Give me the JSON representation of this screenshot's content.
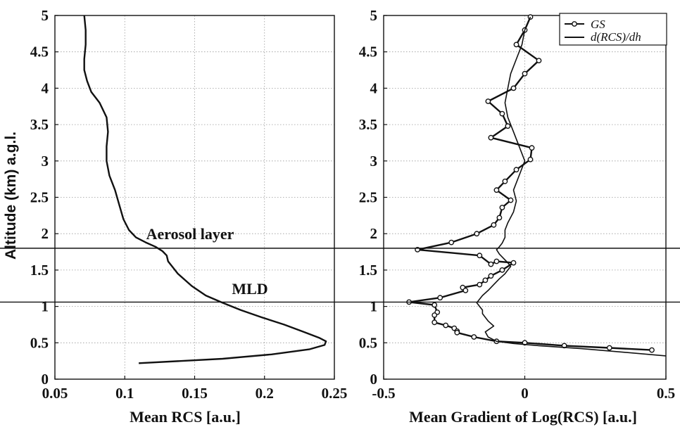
{
  "y_axis_label": "Altitude (km) a.g.l.",
  "annotations": {
    "aerosol_layer": "Aerosol layer",
    "mld": "MLD"
  },
  "horizontal_lines_km": [
    1.8,
    1.06
  ],
  "chart_data": [
    {
      "type": "line",
      "title": "",
      "xlabel": "Mean RCS [a.u.]",
      "ylabel": "Altitude (km) a.g.l.",
      "xlim": [
        0.05,
        0.25
      ],
      "ylim": [
        0,
        5
      ],
      "xticks": [
        "0.05",
        "0.1",
        "0.15",
        "0.2",
        "0.25"
      ],
      "yticks": [
        "0",
        "0.5",
        "1",
        "1.5",
        "2",
        "2.5",
        "3",
        "3.5",
        "4",
        "4.5",
        "5"
      ],
      "grid": true,
      "series": [
        {
          "color": "#111111",
          "x": [
            0.071,
            0.072,
            0.072,
            0.071,
            0.071,
            0.073,
            0.076,
            0.082,
            0.087,
            0.088,
            0.087,
            0.087,
            0.089,
            0.093,
            0.096,
            0.099,
            0.103,
            0.108,
            0.115,
            0.122,
            0.127,
            0.13,
            0.131,
            0.138,
            0.148,
            0.158,
            0.17,
            0.183,
            0.198,
            0.214,
            0.228,
            0.239,
            0.244,
            0.243,
            0.232,
            0.205,
            0.17,
            0.11
          ],
          "y": [
            5.0,
            4.8,
            4.6,
            4.4,
            4.25,
            4.1,
            3.95,
            3.8,
            3.6,
            3.4,
            3.2,
            3.0,
            2.8,
            2.6,
            2.4,
            2.2,
            2.05,
            1.95,
            1.88,
            1.82,
            1.76,
            1.7,
            1.62,
            1.45,
            1.28,
            1.15,
            1.05,
            0.95,
            0.85,
            0.75,
            0.65,
            0.57,
            0.52,
            0.47,
            0.41,
            0.34,
            0.28,
            0.22
          ]
        }
      ]
    },
    {
      "type": "line",
      "title": "",
      "xlabel": "Mean Gradient of Log(RCS) [a.u.]",
      "ylabel": "",
      "xlim": [
        -0.5,
        0.5
      ],
      "ylim": [
        0,
        5
      ],
      "xticks": [
        "-0.5",
        "0",
        "0.5"
      ],
      "yticks": [
        "0",
        "0.5",
        "1",
        "1.5",
        "2",
        "2.5",
        "3",
        "3.5",
        "4",
        "4.5",
        "5"
      ],
      "grid": true,
      "legend": "top-right",
      "series": [
        {
          "name": "GS",
          "color": "#111111",
          "marker": "circle",
          "x": [
            0.02,
            0.0,
            -0.03,
            0.05,
            0.0,
            -0.04,
            -0.13,
            -0.08,
            -0.06,
            -0.12,
            0.025,
            0.02,
            -0.03,
            -0.07,
            -0.1,
            -0.05,
            -0.08,
            -0.09,
            -0.11,
            -0.17,
            -0.26,
            -0.38,
            -0.16,
            -0.12,
            -0.1,
            -0.04,
            -0.08,
            -0.12,
            -0.14,
            -0.16,
            -0.22,
            -0.21,
            -0.3,
            -0.41,
            -0.32,
            -0.31,
            -0.32,
            -0.32,
            -0.28,
            -0.25,
            -0.24,
            -0.24,
            -0.18,
            -0.1,
            0.0,
            0.14,
            0.3,
            0.45
          ],
          "y": [
            4.98,
            4.8,
            4.6,
            4.38,
            4.2,
            4.0,
            3.82,
            3.65,
            3.48,
            3.32,
            3.18,
            3.02,
            2.88,
            2.72,
            2.6,
            2.46,
            2.36,
            2.22,
            2.12,
            2.0,
            1.88,
            1.78,
            1.7,
            1.58,
            1.62,
            1.6,
            1.5,
            1.42,
            1.36,
            1.3,
            1.26,
            1.22,
            1.12,
            1.06,
            1.02,
            0.92,
            0.88,
            0.78,
            0.74,
            0.7,
            0.66,
            0.64,
            0.58,
            0.52,
            0.5,
            0.46,
            0.43,
            0.4
          ]
        },
        {
          "name": "d(RCS)/dh",
          "color": "#111111",
          "x": [
            0.02,
            0.0,
            -0.01,
            -0.03,
            -0.05,
            -0.06,
            -0.07,
            -0.06,
            -0.04,
            -0.02,
            0.0,
            -0.02,
            -0.04,
            -0.03,
            -0.04,
            -0.06,
            -0.07,
            -0.07,
            -0.08,
            -0.09,
            -0.1,
            -0.09,
            -0.06,
            -0.05,
            -0.06,
            -0.07,
            -0.09,
            -0.11,
            -0.13,
            -0.15,
            -0.16,
            -0.17,
            -0.16,
            -0.15,
            -0.15,
            -0.14,
            -0.13,
            -0.11,
            -0.14,
            -0.13,
            -0.1,
            -0.04,
            0.05,
            0.2,
            0.35,
            0.5
          ],
          "y": [
            4.98,
            4.8,
            4.6,
            4.4,
            4.2,
            4.0,
            3.8,
            3.6,
            3.4,
            3.2,
            3.0,
            2.8,
            2.6,
            2.45,
            2.3,
            2.15,
            2.05,
            1.95,
            1.87,
            1.82,
            1.78,
            1.72,
            1.6,
            1.55,
            1.5,
            1.45,
            1.38,
            1.3,
            1.22,
            1.15,
            1.1,
            1.05,
            1.0,
            0.95,
            0.9,
            0.85,
            0.8,
            0.73,
            0.65,
            0.58,
            0.52,
            0.49,
            0.46,
            0.42,
            0.37,
            0.32
          ]
        }
      ]
    }
  ]
}
